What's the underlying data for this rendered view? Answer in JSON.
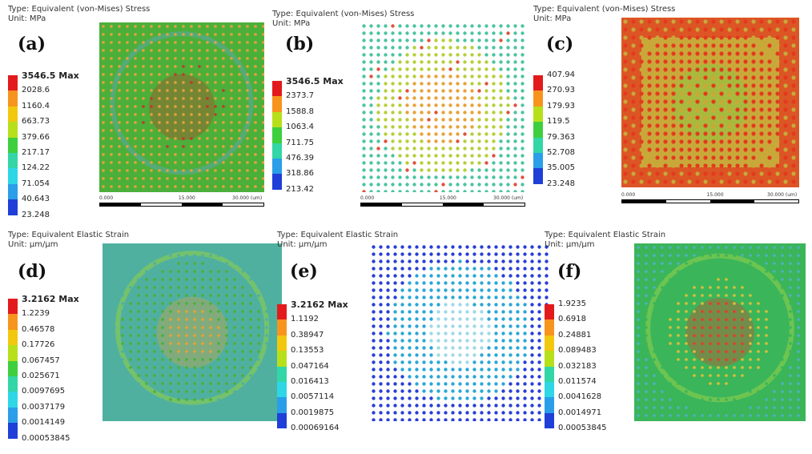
{
  "colors": {
    "legend_scale": [
      "#e31a1c",
      "#f7941d",
      "#f2c80f",
      "#b7e01a",
      "#3ecf3e",
      "#33d6a6",
      "#2fd6e6",
      "#2a9ee8",
      "#1f3fd8"
    ]
  },
  "panels": [
    {
      "id": "a",
      "label": "(a)",
      "type": "Type: Equivalent (von-Mises) Stress",
      "unit": "Unit: MPa",
      "legend": [
        "3546.5 Max",
        "2028.6",
        "1160.4",
        "663.73",
        "379.66",
        "217.17",
        "124.22",
        "71.054",
        "40.643",
        "23.248"
      ],
      "scale": [
        "0.000",
        "15.000",
        "30.000 (um)"
      ],
      "style": "dots",
      "bg": "#4caf3a",
      "dot": "#e0a43a",
      "hot": "#c0392b"
    },
    {
      "id": "b",
      "label": "(b)",
      "type": "Type: Equivalent (von-Mises) Stress",
      "unit": "Unit: MPa",
      "legend": [
        "3546.5 Max",
        "2373.7",
        "1588.8",
        "1063.4",
        "711.75",
        "476.39",
        "318.86",
        "213.42"
      ],
      "scale": [
        "0.000",
        "15.000",
        "30.000 (um)"
      ],
      "style": "sparse",
      "bg": "#ffffff",
      "dot": "#b6cf3a",
      "hot": "#e0523a"
    },
    {
      "id": "c",
      "label": "(c)",
      "type": "Type: Equivalent (von-Mises) Stress",
      "unit": "Unit: MPa",
      "legend": [
        "407.94",
        "270.93",
        "179.93",
        "119.5",
        "79.363",
        "52.708",
        "35.005",
        "23.248"
      ],
      "scale": [
        "0.000",
        "15.000",
        "30.000 (um)"
      ],
      "style": "dense-red",
      "bg": "#c9a83a",
      "dot": "#e23a1f",
      "hot": "#e23a1f"
    },
    {
      "id": "d",
      "label": "(d)",
      "type": "Type: Equivalent Elastic Strain",
      "unit": "Unit: μm/μm",
      "legend": [
        "3.2162 Max",
        "1.2239",
        "0.46578",
        "0.17726",
        "0.067457",
        "0.025671",
        "0.0097695",
        "0.0037179",
        "0.0014149",
        "0.00053845"
      ],
      "scale": [],
      "style": "strain",
      "bg": "#4fb0a0",
      "dot": "#4caf3a",
      "hot": "#e0a43a"
    },
    {
      "id": "e",
      "label": "(e)",
      "type": "Type: Equivalent Elastic Strain",
      "unit": "Unit: μm/μm",
      "legend": [
        "3.2162 Max",
        "1.1192",
        "0.38947",
        "0.13553",
        "0.047164",
        "0.016413",
        "0.0057114",
        "0.0019875",
        "0.00069164"
      ],
      "scale": [],
      "style": "blue-sparse",
      "bg": "#ffffff",
      "dot": "#2ba7d6",
      "hot": "#2a3fd6"
    },
    {
      "id": "f",
      "label": "(f)",
      "type": "Type: Equivalent Elastic Strain",
      "unit": "Unit: μm/μm",
      "legend": [
        "1.9235",
        "0.6918",
        "0.24881",
        "0.089483",
        "0.032183",
        "0.011574",
        "0.0041628",
        "0.0014971",
        "0.00053845"
      ],
      "scale": [],
      "style": "strain2",
      "bg": "#3bb55a",
      "dot": "#d9c03a",
      "hot": "#e0402a"
    }
  ]
}
